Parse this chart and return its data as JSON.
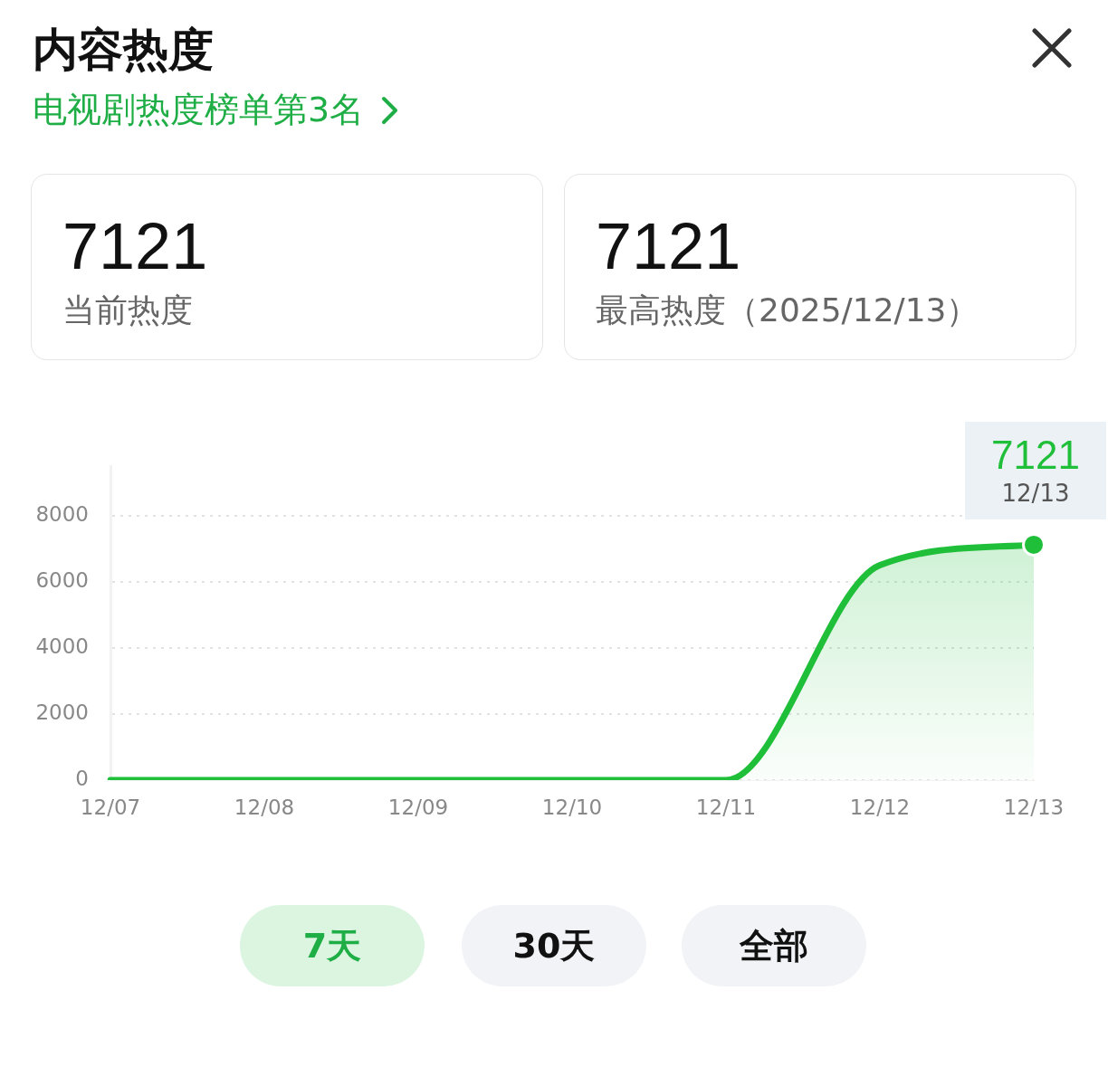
{
  "chart_data": {
    "type": "area",
    "title": "内容热度",
    "subtitle": "电视剧热度榜单第3名",
    "categories": [
      "12/07",
      "12/08",
      "12/09",
      "12/10",
      "12/11",
      "12/12",
      "12/13"
    ],
    "series": [
      {
        "color": "#1fbf3a",
        "values": [
          0,
          0,
          0,
          0,
          0,
          6500,
          7121
        ]
      }
    ],
    "ylim": [
      0,
      9500
    ],
    "yticks": [
      0,
      2000,
      4000,
      6000,
      8000
    ],
    "grid": "y",
    "legend": false,
    "marker": "none",
    "annotations": [
      "7121",
      "当前热度",
      "7121",
      "最高热度（2025/12/13）",
      "7天",
      "30天",
      "全部",
      {
        "text": "7121",
        "x": "12/13",
        "y": 7121
      },
      {
        "text": "12/13",
        "x": "12/13",
        "y": 7121
      }
    ]
  }
}
